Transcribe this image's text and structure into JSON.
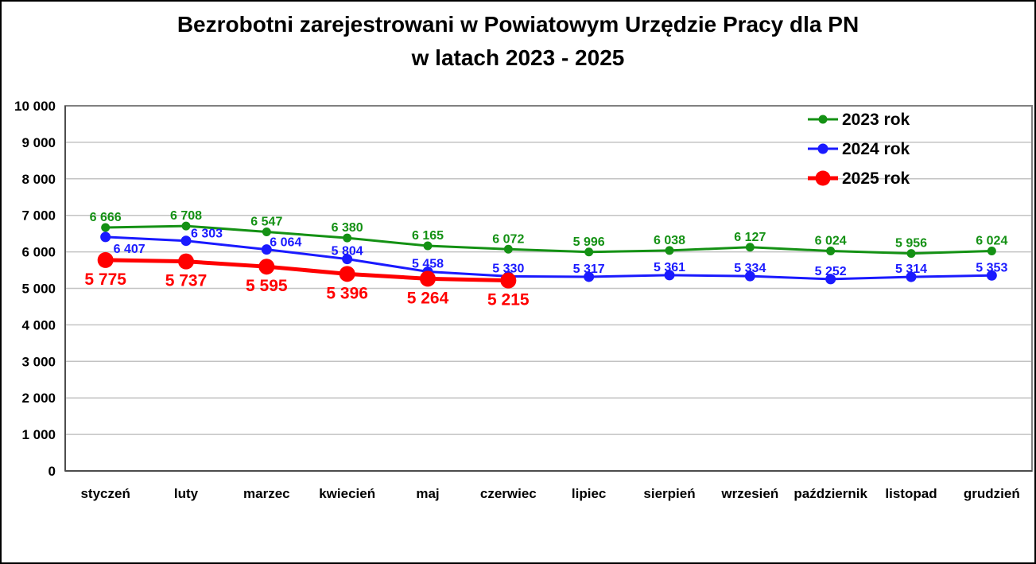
{
  "title": {
    "line1": "Bezrobotni zarejestrowani w Powiatowym Urzędzie Pracy dla PN",
    "line2": "w latach 2023 - 2025"
  },
  "chart_data": {
    "type": "line",
    "categories": [
      "styczeń",
      "luty",
      "marzec",
      "kwiecień",
      "maj",
      "czerwiec",
      "lipiec",
      "sierpień",
      "wrzesień",
      "październik",
      "listopad",
      "grudzień"
    ],
    "series": [
      {
        "name": "2023 rok",
        "color": "#149114",
        "values": [
          6666,
          6708,
          6547,
          6380,
          6165,
          6072,
          5996,
          6038,
          6127,
          6024,
          5956,
          6024
        ],
        "labels": [
          "6 666",
          "6 708",
          "6 547",
          "6 380",
          "6 165",
          "6 072",
          "5 996",
          "6 038",
          "6 127",
          "6 024",
          "5 956",
          "6 024"
        ]
      },
      {
        "name": "2024 rok",
        "color": "#1a1aff",
        "values": [
          6407,
          6303,
          6064,
          5804,
          5458,
          5330,
          5317,
          5361,
          5334,
          5252,
          5314,
          5353
        ],
        "labels": [
          "6 407",
          "6 303",
          "6 064",
          "5 804",
          "5 458",
          "5 330",
          "5 317",
          "5 361",
          "5 334",
          "5 252",
          "5 314",
          "5 353"
        ]
      },
      {
        "name": "2025 rok",
        "color": "#ff0000",
        "values": [
          5775,
          5737,
          5595,
          5396,
          5264,
          5215
        ],
        "labels": [
          "5 775",
          "5 737",
          "5 595",
          "5 396",
          "5 264",
          "5 215"
        ]
      }
    ],
    "ylim": [
      0,
      10000
    ],
    "ytick_step": 1000,
    "y_tick_labels": [
      "10 000",
      "9 000",
      "8 000",
      "7 000",
      "6 000",
      "5 000",
      "4 000",
      "3 000",
      "2 000",
      "1 000",
      "0"
    ],
    "xlabel": "",
    "ylabel": "",
    "grid": "horizontal gridlines every 1000",
    "legend_position": "top-right inside plot area",
    "legend": [
      "2023 rok",
      "2024 rok",
      "2025 rok"
    ]
  },
  "colors": {
    "background": "#ffffff",
    "grid": "#c3c3c3",
    "frame": "#808080",
    "axis": "#4d4d4d",
    "text": "#000000",
    "series_2023": "#149114",
    "series_2024": "#1a1aff",
    "series_2025": "#ff0000"
  }
}
